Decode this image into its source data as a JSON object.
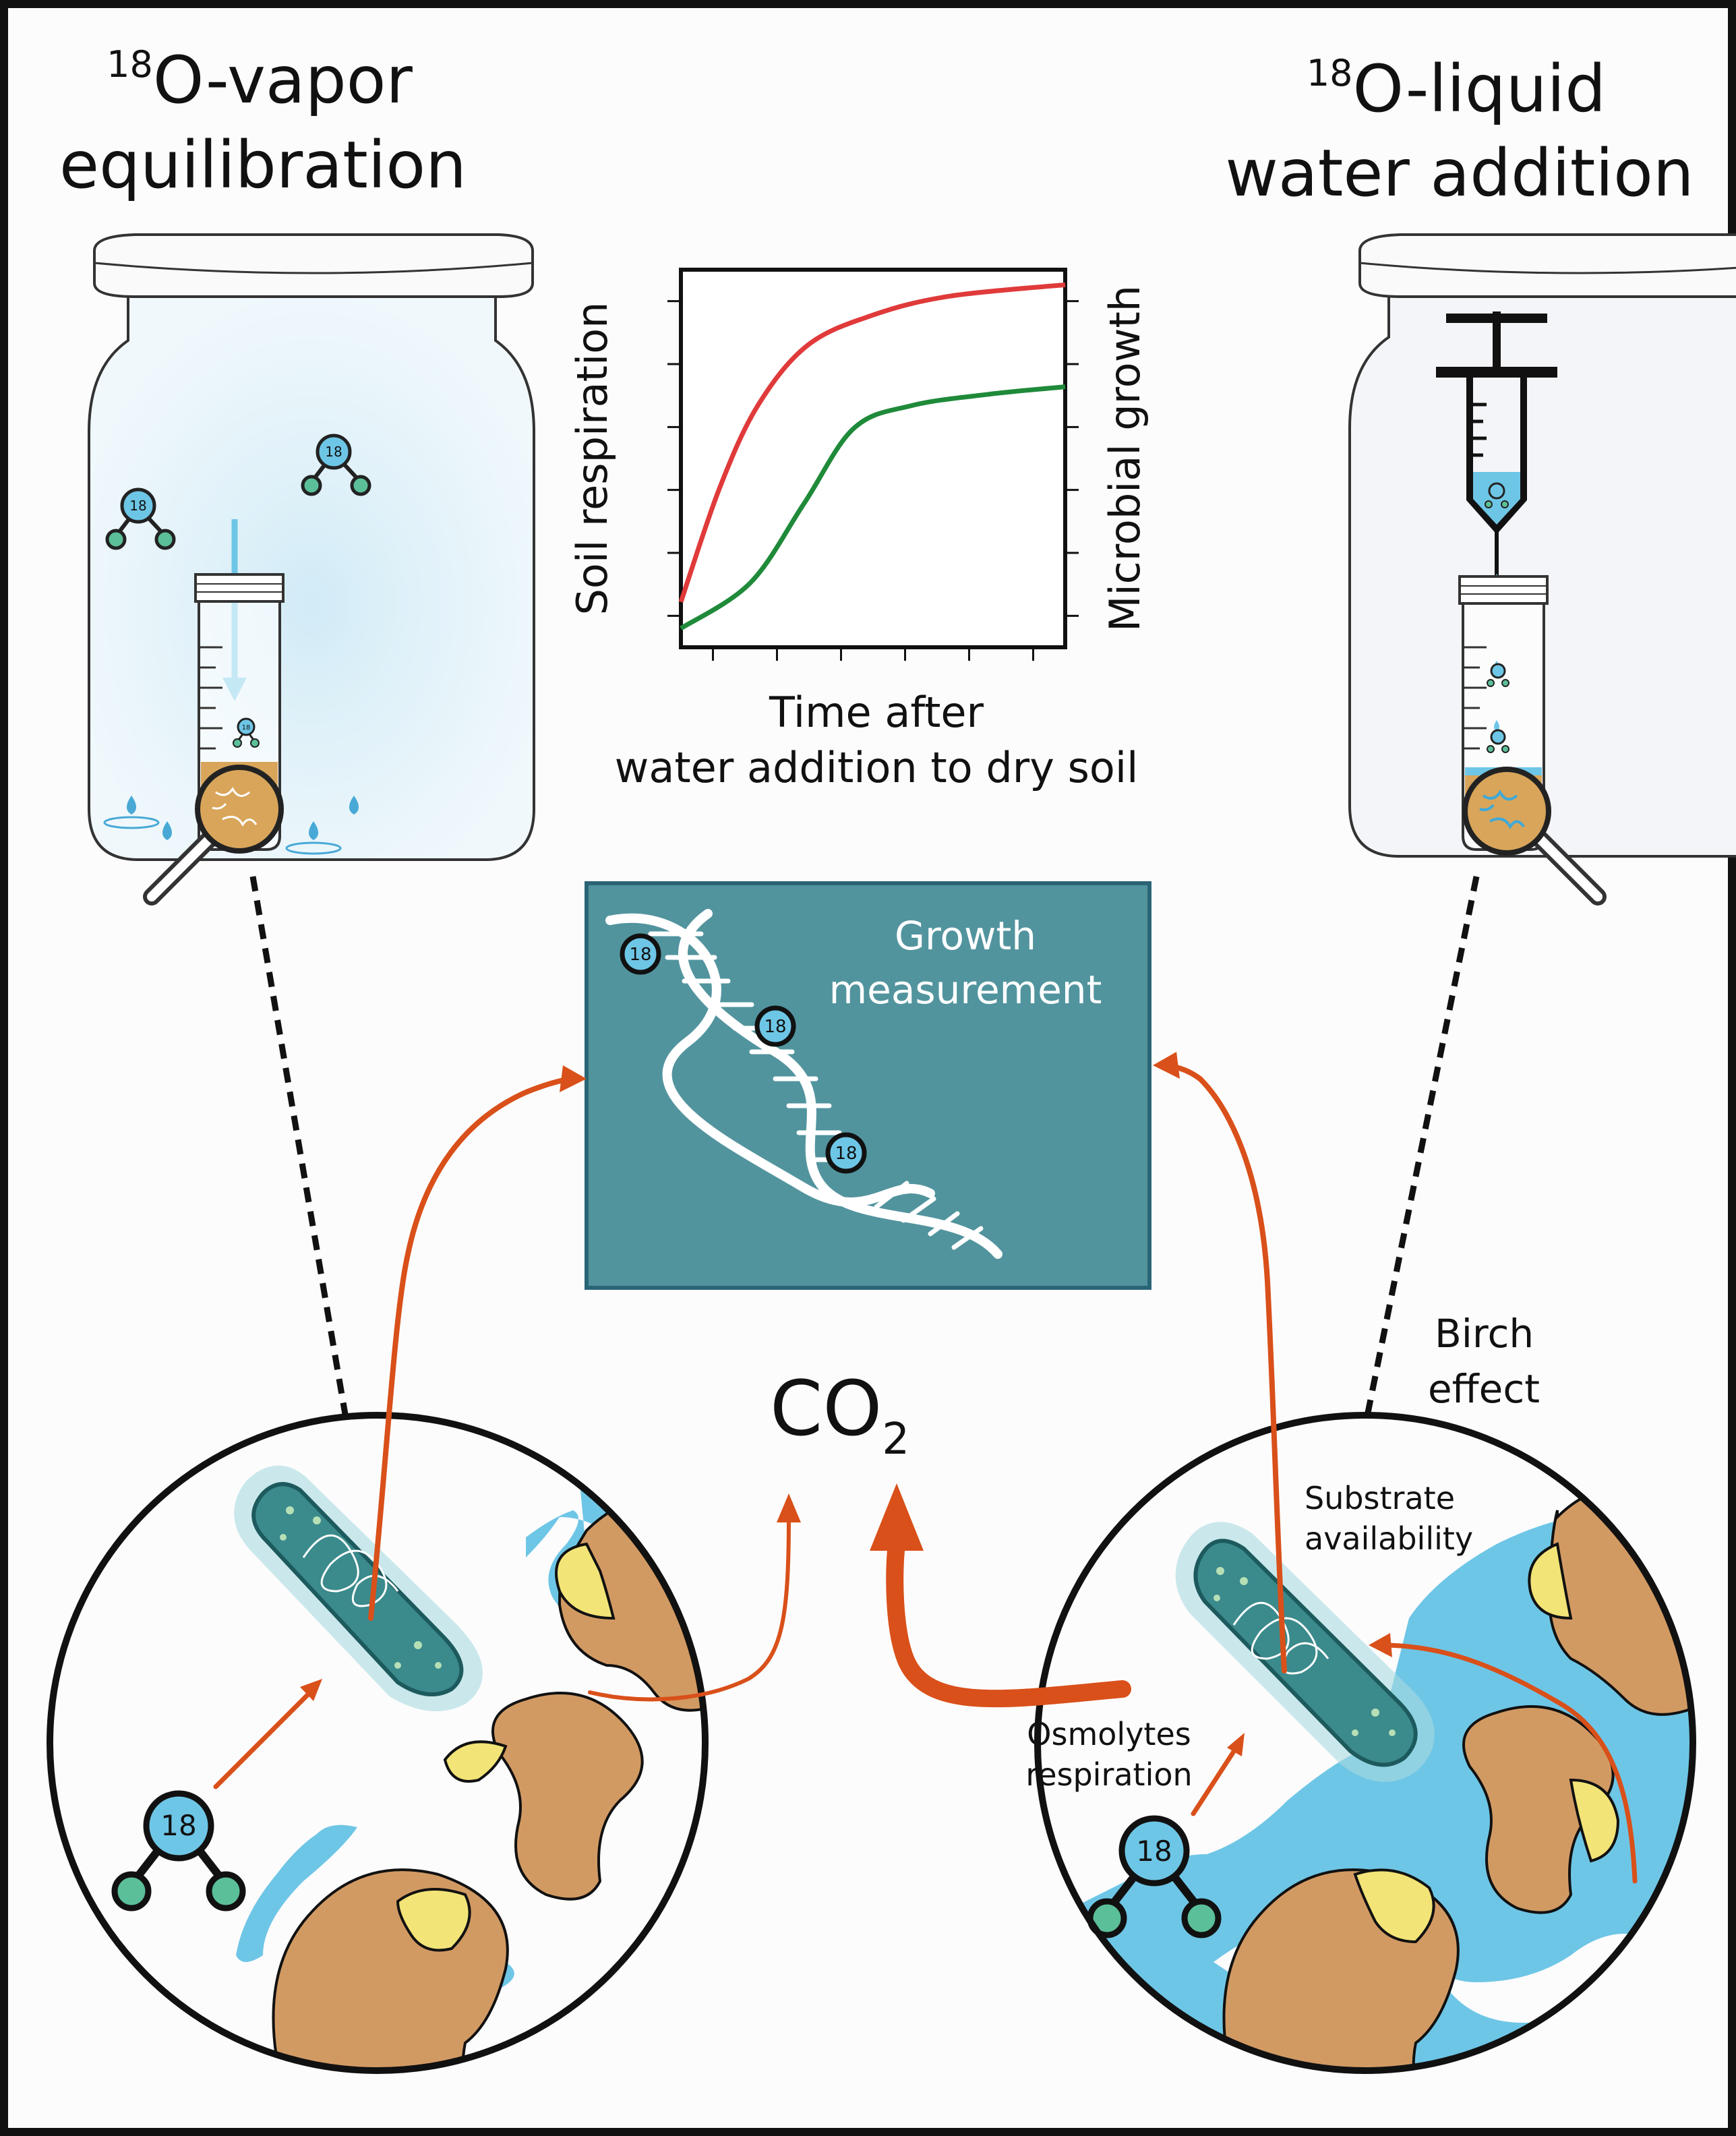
{
  "titles": {
    "left": {
      "sup": "18",
      "line1": "O-vapor",
      "line2": "equilibration"
    },
    "right": {
      "sup": "18",
      "line1": "O-liquid",
      "line2": "water addition"
    }
  },
  "chart_data": {
    "type": "line",
    "xlabel": [
      "Time after",
      "water addition to dry soil"
    ],
    "ylabel_left": "Soil respiration",
    "ylabel_right": "Microbial growth",
    "series": [
      {
        "label": "Soil respiration",
        "color": "#e03a3a",
        "curve": [
          [
            0,
            0.12
          ],
          [
            0.1,
            0.42
          ],
          [
            0.2,
            0.64
          ],
          [
            0.33,
            0.8
          ],
          [
            0.5,
            0.88
          ],
          [
            0.7,
            0.93
          ],
          [
            1,
            0.96
          ]
        ]
      },
      {
        "label": "Microbial growth",
        "color": "#1f8a3a",
        "curve": [
          [
            0,
            0.05
          ],
          [
            0.18,
            0.17
          ],
          [
            0.32,
            0.38
          ],
          [
            0.45,
            0.58
          ],
          [
            0.6,
            0.64
          ],
          [
            0.8,
            0.67
          ],
          [
            1,
            0.69
          ]
        ]
      }
    ]
  },
  "growth_box": {
    "line1": "Growth",
    "line2": "measurement"
  },
  "co2": {
    "main": "CO",
    "sub": "2"
  },
  "labels": {
    "birch_effect": [
      "Birch",
      "effect"
    ],
    "substrate": [
      "Substrate",
      "availability"
    ],
    "osmolytes": [
      "Osmolytes",
      "respiration"
    ]
  },
  "isotope_label": "18",
  "colors": {
    "teal_box": "#52949e",
    "arrow_orange": "#d9501a",
    "water_blue": "#6ec6e6",
    "soil_brown": "#d29a63",
    "soil_yellow": "#f2e477",
    "bacterium": "#3b8a8c",
    "atom_green": "#5bbf99",
    "red_line": "#e03a3a",
    "green_line": "#1f8a3a"
  }
}
